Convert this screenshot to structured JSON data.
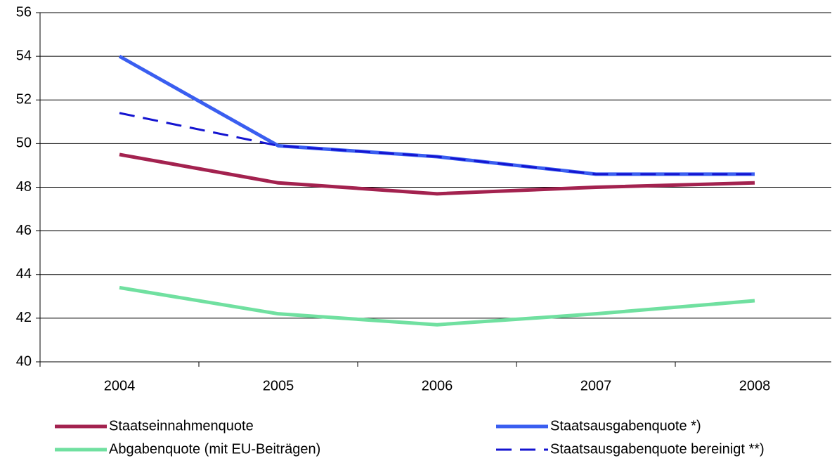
{
  "chart_data": {
    "type": "line",
    "categories": [
      "2004",
      "2005",
      "2006",
      "2007",
      "2008"
    ],
    "series": [
      {
        "name": "Staatseinnahmenquote",
        "color": "#a3224f",
        "values": [
          49.5,
          48.2,
          47.7,
          48.0,
          48.2
        ]
      },
      {
        "name": "Staatsausgabenquote *)",
        "color": "#3a5ef0",
        "values": [
          54.0,
          49.9,
          49.4,
          48.6,
          48.6
        ]
      },
      {
        "name": "Abgabenquote (mit EU-Beiträgen)",
        "color": "#70e0a0",
        "values": [
          43.4,
          42.2,
          41.7,
          42.2,
          42.8
        ]
      },
      {
        "name": "Staatsausgabenquote bereinigt **)",
        "color": "#1414d0",
        "dashed": true,
        "values": [
          51.4,
          49.9,
          49.4,
          48.6,
          48.6
        ]
      }
    ],
    "ylim": [
      40,
      56
    ],
    "yticks": [
      40,
      42,
      44,
      46,
      48,
      50,
      52,
      54,
      56
    ],
    "grid": true
  }
}
